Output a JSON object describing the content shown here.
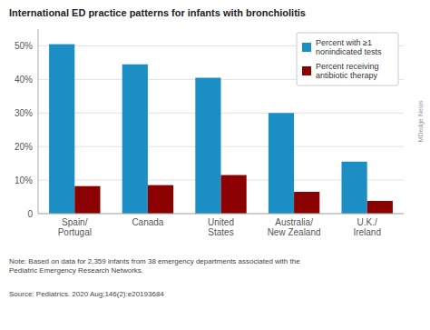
{
  "chart_data": {
    "type": "bar",
    "title": "International ED practice patterns for infants with bronchiolitis",
    "categories": [
      "Spain/\nPortugal",
      "Canada",
      "United\nStates",
      "Australia/\nNew Zealand",
      "U.K./\nIreland"
    ],
    "series": [
      {
        "name": "Percent with ≥1\nnonindicated tests",
        "color": "#1b8fc4",
        "values": [
          50.5,
          44.5,
          40.5,
          30.0,
          15.5
        ]
      },
      {
        "name": "Percent receiving\nantibiotic therapy",
        "color": "#8b0000",
        "values": [
          8.2,
          8.5,
          11.5,
          6.5,
          3.8
        ]
      }
    ],
    "ylim": [
      0,
      55
    ],
    "yticks": [
      0,
      {
        "value": 10,
        "label": "10%"
      },
      {
        "value": 20,
        "label": "20%"
      },
      {
        "value": 30,
        "label": "30%"
      },
      {
        "value": 40,
        "label": "40%"
      },
      {
        "value": 50,
        "label": "50%"
      }
    ],
    "grid": true,
    "legend": "upper right",
    "annotations": [
      "Note: Based on data for 2,359 infants from 38 emergency departments associated with the\nPediatric Emergency Research Networks.",
      "Source: Pediatrics. 2020 Aug;146(2):e20193684",
      "MDedge News"
    ]
  }
}
